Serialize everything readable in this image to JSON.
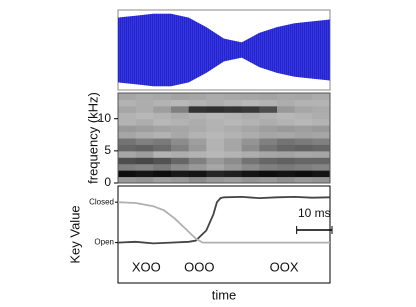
{
  "chart_data": [
    {
      "type": "waveform",
      "color": "#3535e8",
      "x": [
        0,
        5,
        10,
        15,
        20,
        25,
        30,
        35,
        40,
        45,
        50,
        55,
        60
      ],
      "values": [
        0.85,
        0.9,
        0.95,
        0.95,
        0.85,
        0.6,
        0.3,
        0.2,
        0.45,
        0.6,
        0.7,
        0.75,
        0.8
      ],
      "xlim": [
        0,
        60
      ],
      "ylim": [
        -1.05,
        1.05
      ]
    },
    {
      "type": "heatmap",
      "ylabel": "frequency (kHz)",
      "xlim": [
        0,
        60
      ],
      "ylim": [
        0,
        14
      ],
      "yticks": [
        0,
        5,
        10
      ],
      "z": [
        [
          0.4,
          0.42,
          0.38,
          0.4,
          0.45,
          0.4,
          0.38,
          0.42,
          0.4,
          0.44,
          0.4,
          0.42
        ],
        [
          0.95,
          0.92,
          0.95,
          0.9,
          0.92,
          0.85,
          0.88,
          0.92,
          0.95,
          0.93,
          0.95,
          0.92
        ],
        [
          0.5,
          0.48,
          0.52,
          0.45,
          0.4,
          0.35,
          0.4,
          0.45,
          0.5,
          0.52,
          0.5,
          0.48
        ],
        [
          0.7,
          0.72,
          0.68,
          0.6,
          0.5,
          0.4,
          0.45,
          0.55,
          0.6,
          0.62,
          0.6,
          0.6
        ],
        [
          0.35,
          0.38,
          0.3,
          0.32,
          0.3,
          0.28,
          0.3,
          0.32,
          0.35,
          0.36,
          0.34,
          0.35
        ],
        [
          0.6,
          0.62,
          0.58,
          0.5,
          0.4,
          0.3,
          0.35,
          0.45,
          0.55,
          0.6,
          0.62,
          0.6
        ],
        [
          0.55,
          0.5,
          0.52,
          0.45,
          0.38,
          0.3,
          0.35,
          0.42,
          0.5,
          0.55,
          0.52,
          0.5
        ],
        [
          0.35,
          0.32,
          0.3,
          0.34,
          0.3,
          0.28,
          0.3,
          0.32,
          0.35,
          0.34,
          0.36,
          0.35
        ],
        [
          0.4,
          0.38,
          0.36,
          0.35,
          0.33,
          0.3,
          0.32,
          0.35,
          0.38,
          0.4,
          0.38,
          0.4
        ],
        [
          0.3,
          0.32,
          0.28,
          0.3,
          0.32,
          0.3,
          0.28,
          0.3,
          0.32,
          0.3,
          0.28,
          0.3
        ],
        [
          0.3,
          0.28,
          0.3,
          0.32,
          0.3,
          0.28,
          0.3,
          0.32,
          0.3,
          0.28,
          0.3,
          0.32
        ],
        [
          0.35,
          0.32,
          0.38,
          0.5,
          0.8,
          0.82,
          0.8,
          0.78,
          0.7,
          0.4,
          0.35,
          0.33
        ],
        [
          0.3,
          0.32,
          0.3,
          0.28,
          0.3,
          0.32,
          0.3,
          0.28,
          0.3,
          0.32,
          0.3,
          0.3
        ],
        [
          0.35,
          0.33,
          0.34,
          0.36,
          0.35,
          0.33,
          0.34,
          0.35,
          0.36,
          0.34,
          0.35,
          0.33
        ]
      ]
    },
    {
      "type": "line",
      "ylabel": "Key Value",
      "xlabel": "time",
      "xlim": [
        0,
        60
      ],
      "ylim": [
        -1,
        1.4
      ],
      "yticks": [
        {
          "value": 0,
          "label": "Open"
        },
        {
          "value": 1,
          "label": "Closed"
        }
      ],
      "series": [
        {
          "color": "#444444",
          "x": [
            0,
            5,
            10,
            15,
            20,
            22,
            25,
            27,
            28,
            29,
            30,
            35,
            40,
            45,
            50,
            55,
            60
          ],
          "values": [
            0,
            0.02,
            -0.02,
            0,
            0.02,
            0.05,
            0.3,
            0.7,
            1.0,
            1.1,
            1.12,
            1.13,
            1.1,
            1.12,
            1.13,
            1.11,
            1.12
          ]
        },
        {
          "color": "#b0b0b0",
          "x": [
            0,
            5,
            10,
            13,
            16,
            19,
            22,
            24,
            30,
            40,
            50,
            60
          ],
          "values": [
            1,
            0.98,
            0.9,
            0.8,
            0.6,
            0.35,
            0.1,
            0,
            0,
            0,
            0,
            0
          ]
        }
      ],
      "scale_bar": {
        "label": "10 ms",
        "length": 10
      },
      "annotations": [
        {
          "x": 8,
          "text": "XOO"
        },
        {
          "x": 23,
          "text": "OOO"
        },
        {
          "x": 47,
          "text": "OOX"
        }
      ]
    }
  ]
}
